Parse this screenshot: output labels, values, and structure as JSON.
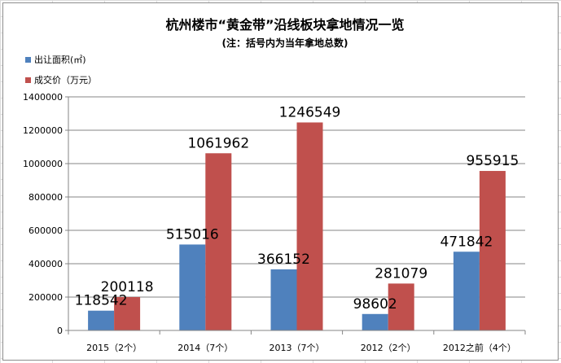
{
  "chart_data": {
    "type": "bar",
    "title": "杭州楼市“黄金带”沿线板块拿地情况一览",
    "subtitle": "(注：括号内为当年拿地总数)",
    "categories": [
      "2015（2个）",
      "2014（7个）",
      "2013（7个）",
      "2012（2个）",
      "2012之前（4个）"
    ],
    "series": [
      {
        "name": "出让面积(㎡)",
        "color": "#4f81bd",
        "values": [
          118542,
          515016,
          366152,
          98602,
          471842
        ]
      },
      {
        "name": "成交价（万元）",
        "color": "#c0504d",
        "values": [
          200118,
          1061962,
          1246549,
          281079,
          955915
        ]
      }
    ],
    "ylim": [
      0,
      1400000
    ],
    "yticks": [
      "0",
      "200000",
      "400000",
      "600000",
      "800000",
      "1000000",
      "1200000",
      "1400000"
    ],
    "grid": true,
    "legend_position": "top-left"
  }
}
